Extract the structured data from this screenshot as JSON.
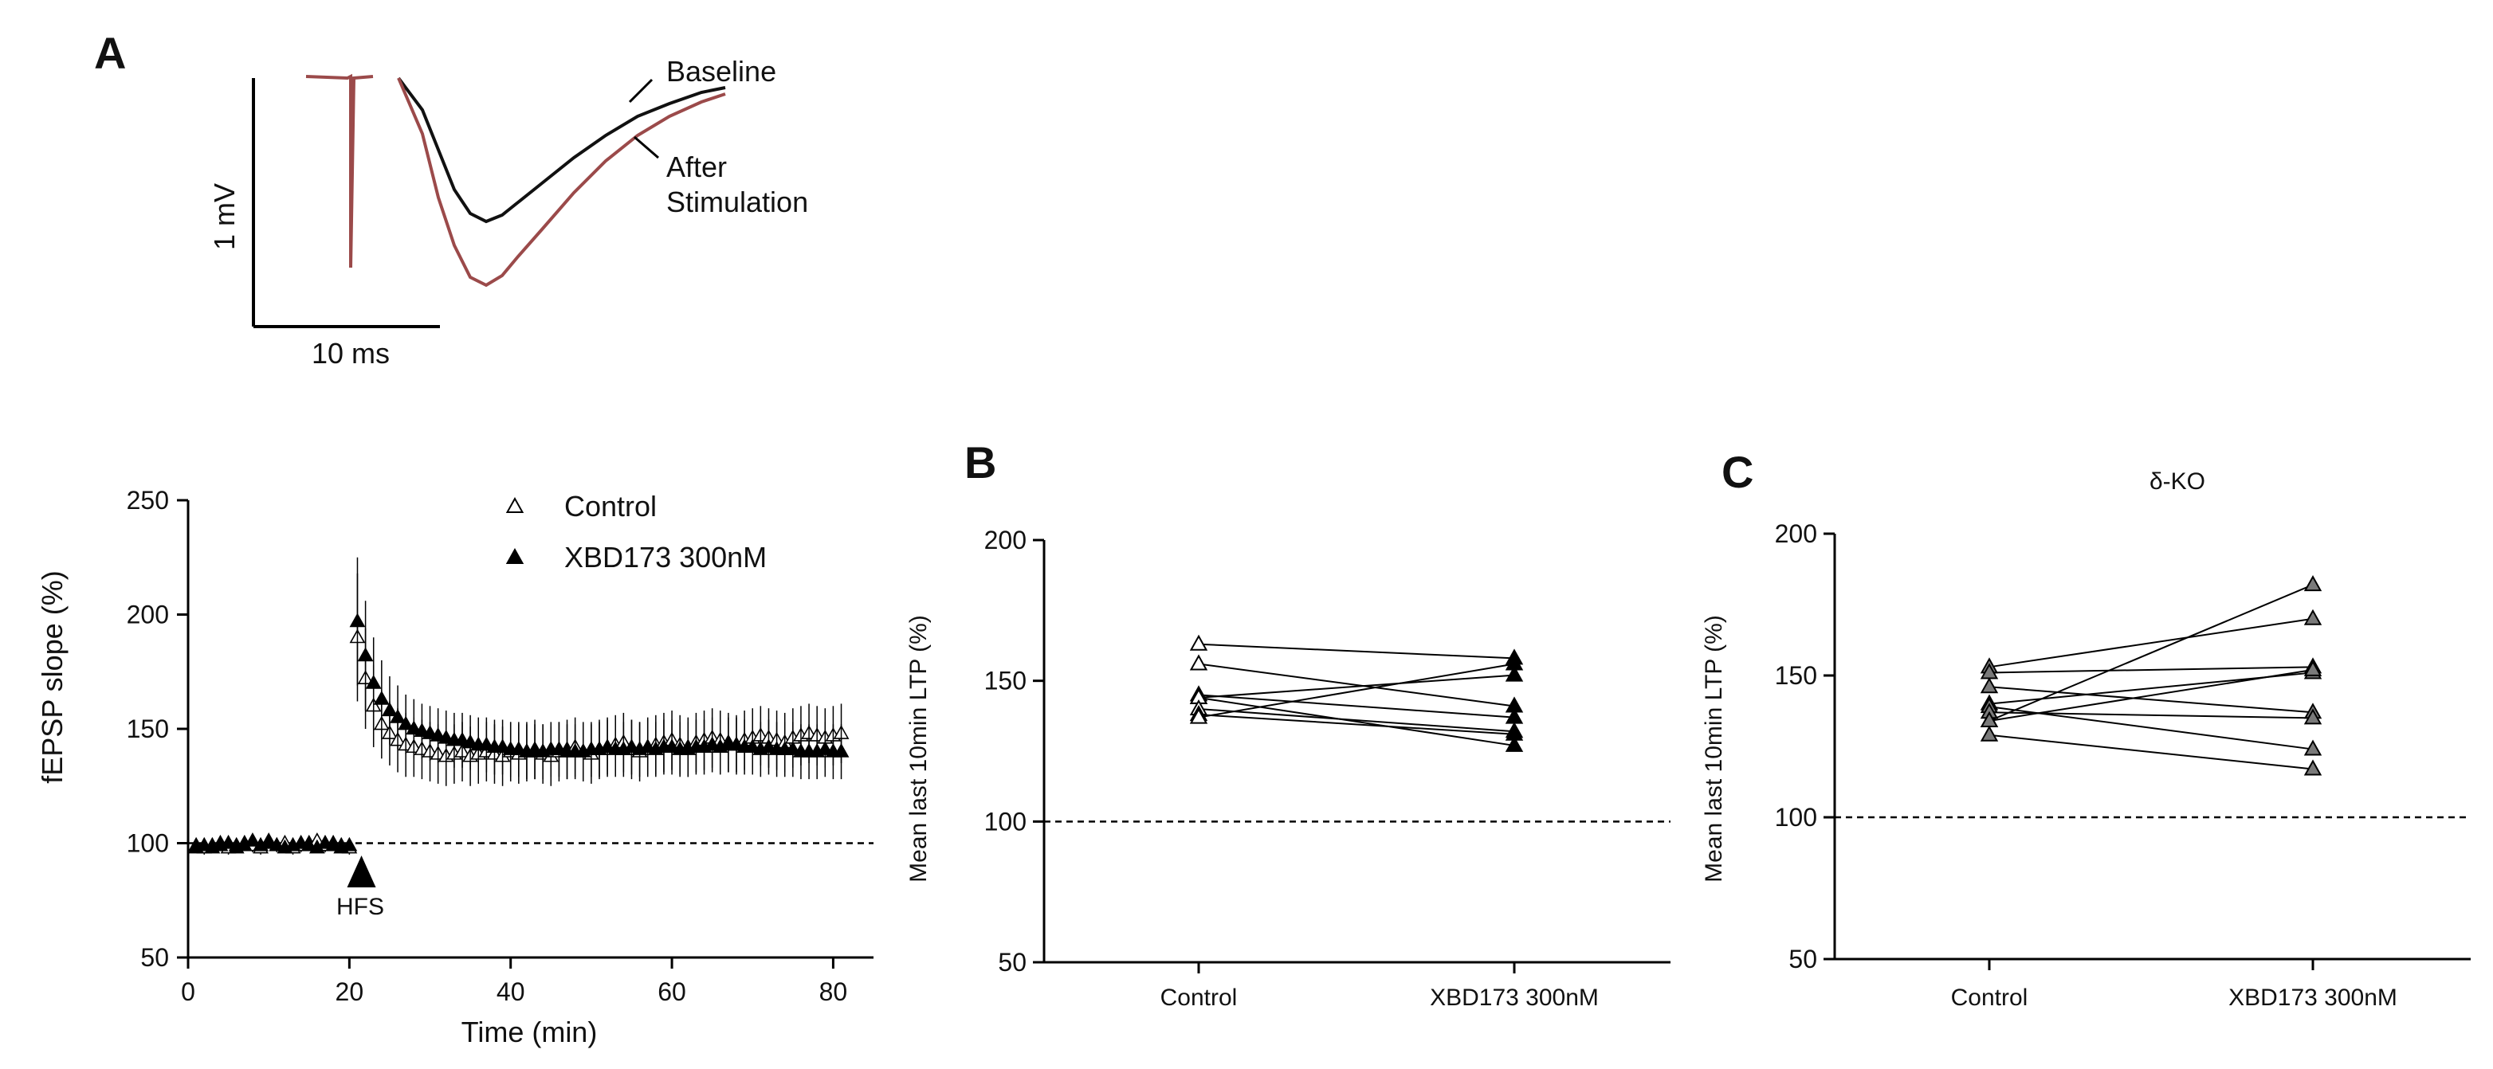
{
  "panel_letters": {
    "a": "A",
    "b": "B",
    "c": "C"
  },
  "colors": {
    "control_fill": "#ffffff",
    "xbd_fill": "#000000",
    "ko_fill": "#7a7a7a",
    "baseline_trace": "#111111",
    "after_trace": "#9b4a4a"
  },
  "chart_data": [
    {
      "id": "A-trace",
      "type": "line",
      "title": "",
      "labels": {
        "baseline": "Baseline",
        "after_line1": "After",
        "after_line2": "Stimulation"
      },
      "scale_bar": {
        "vertical": "1 mV",
        "horizontal": "10 ms"
      },
      "series": [
        {
          "name": "Baseline",
          "x": [
            0,
            3,
            5,
            7,
            9,
            11,
            13,
            15,
            18,
            22,
            26,
            30,
            34,
            38,
            41
          ],
          "y": [
            0,
            -0.2,
            -0.45,
            -0.7,
            -0.85,
            -0.9,
            -0.86,
            -0.78,
            -0.66,
            -0.5,
            -0.36,
            -0.24,
            -0.16,
            -0.09,
            -0.06
          ]
        },
        {
          "name": "After Stimulation",
          "x": [
            0,
            3,
            5,
            7,
            9,
            11,
            13,
            15,
            18,
            22,
            26,
            30,
            34,
            38,
            41
          ],
          "y": [
            0,
            -0.35,
            -0.75,
            -1.05,
            -1.25,
            -1.3,
            -1.24,
            -1.12,
            -0.95,
            -0.72,
            -0.52,
            -0.36,
            -0.24,
            -0.15,
            -0.1
          ]
        }
      ]
    },
    {
      "id": "A-timecourse",
      "type": "scatter",
      "title": "",
      "xlabel": "Time (min)",
      "ylabel": "fEPSP slope (%)",
      "xlim": [
        0,
        85
      ],
      "ylim": [
        50,
        250
      ],
      "xticks": [
        0,
        20,
        40,
        60,
        80
      ],
      "yticks": [
        50,
        100,
        150,
        200,
        250
      ],
      "reference_line": 100,
      "annotation": "HFS",
      "annotation_x": 21.5,
      "legend": [
        "Control",
        "XBD173 300nM"
      ],
      "legend_position": "top-right",
      "series": [
        {
          "name": "Control",
          "marker": "open-triangle",
          "x": [
            1,
            2,
            3,
            4,
            5,
            6,
            7,
            8,
            9,
            10,
            11,
            12,
            13,
            14,
            15,
            16,
            17,
            18,
            19,
            20,
            21,
            22,
            23,
            24,
            25,
            26,
            27,
            28,
            29,
            30,
            31,
            32,
            33,
            34,
            35,
            36,
            37,
            38,
            39,
            40,
            41,
            42,
            43,
            44,
            45,
            46,
            47,
            48,
            49,
            50,
            51,
            52,
            53,
            54,
            55,
            56,
            57,
            58,
            59,
            60,
            61,
            62,
            63,
            64,
            65,
            66,
            67,
            68,
            69,
            70,
            71,
            72,
            73,
            74,
            75,
            76,
            77,
            78,
            79,
            80,
            81
          ],
          "y": [
            99,
            98,
            99,
            100,
            98,
            99,
            100,
            99,
            98,
            101,
            99,
            100,
            98,
            99,
            100,
            101,
            99,
            100,
            99,
            98,
            190,
            172,
            160,
            152,
            148,
            145,
            143,
            142,
            141,
            140,
            139,
            138,
            139,
            140,
            138,
            139,
            140,
            139,
            138,
            140,
            139,
            140,
            141,
            139,
            138,
            140,
            141,
            142,
            140,
            139,
            141,
            142,
            143,
            144,
            141,
            140,
            142,
            143,
            144,
            145,
            143,
            142,
            144,
            145,
            146,
            145,
            144,
            143,
            145,
            146,
            147,
            146,
            145,
            144,
            146,
            147,
            148,
            147,
            146,
            147,
            148
          ],
          "error": [
            3,
            3,
            3,
            3,
            3,
            3,
            3,
            3,
            3,
            3,
            3,
            3,
            3,
            3,
            3,
            3,
            3,
            3,
            3,
            3,
            28,
            22,
            18,
            15,
            14,
            14,
            14,
            13,
            13,
            13,
            13,
            13,
            13,
            13,
            13,
            13,
            13,
            13,
            13,
            13,
            13,
            13,
            13,
            13,
            13,
            13,
            13,
            13,
            13,
            13,
            13,
            13,
            13,
            13,
            13,
            13,
            13,
            13,
            13,
            13,
            13,
            13,
            13,
            13,
            13,
            13,
            13,
            13,
            13,
            13,
            13,
            13,
            13,
            13,
            13,
            13,
            13,
            13,
            13,
            13,
            13
          ]
        },
        {
          "name": "XBD173 300nM",
          "marker": "filled-triangle",
          "x": [
            1,
            2,
            3,
            4,
            5,
            6,
            7,
            8,
            9,
            10,
            11,
            12,
            13,
            14,
            15,
            16,
            17,
            18,
            19,
            20,
            21,
            22,
            23,
            24,
            25,
            26,
            27,
            28,
            29,
            30,
            31,
            32,
            33,
            34,
            35,
            36,
            37,
            38,
            39,
            40,
            41,
            42,
            43,
            44,
            45,
            46,
            47,
            48,
            49,
            50,
            51,
            52,
            53,
            54,
            55,
            56,
            57,
            58,
            59,
            60,
            61,
            62,
            63,
            64,
            65,
            66,
            67,
            68,
            69,
            70,
            71,
            72,
            73,
            74,
            75,
            76,
            77,
            78,
            79,
            80,
            81
          ],
          "y": [
            98,
            99,
            98,
            99,
            100,
            98,
            99,
            101,
            99,
            100,
            99,
            98,
            99,
            100,
            99,
            98,
            100,
            99,
            98,
            99,
            197,
            182,
            170,
            163,
            158,
            155,
            152,
            150,
            149,
            148,
            147,
            146,
            145,
            145,
            144,
            143,
            143,
            142,
            142,
            141,
            141,
            140,
            140,
            140,
            141,
            141,
            140,
            140,
            140,
            141,
            141,
            142,
            141,
            141,
            142,
            141,
            142,
            141,
            142,
            142,
            141,
            141,
            142,
            142,
            143,
            142,
            143,
            143,
            142,
            142,
            141,
            142,
            141,
            141,
            141,
            140,
            140,
            140,
            141,
            140,
            140
          ],
          "error": [
            2,
            2,
            2,
            2,
            2,
            2,
            2,
            2,
            2,
            2,
            2,
            2,
            2,
            2,
            2,
            2,
            2,
            2,
            2,
            2,
            28,
            24,
            20,
            17,
            15,
            14,
            13,
            13,
            12,
            12,
            12,
            12,
            12,
            12,
            12,
            12,
            12,
            12,
            12,
            12,
            12,
            12,
            12,
            12,
            12,
            12,
            12,
            12,
            12,
            12,
            12,
            12,
            12,
            12,
            12,
            12,
            12,
            12,
            12,
            12,
            12,
            12,
            12,
            12,
            12,
            12,
            12,
            12,
            12,
            12,
            12,
            12,
            12,
            12,
            12,
            12,
            12,
            12,
            12,
            12,
            12
          ]
        }
      ]
    },
    {
      "id": "B",
      "type": "scatter",
      "title": "",
      "xlabel": "",
      "ylabel": "Mean last 10min LTP (%)",
      "categories": [
        "Control",
        "XBD173 300nM"
      ],
      "ylim": [
        50,
        200
      ],
      "yticks": [
        50,
        100,
        150,
        200
      ],
      "reference_line": 100,
      "paired": [
        [
          163,
          158
        ],
        [
          156,
          141
        ],
        [
          145,
          137
        ],
        [
          144,
          152
        ],
        [
          144,
          127
        ],
        [
          140,
          132
        ],
        [
          138,
          131
        ],
        [
          137,
          156
        ]
      ]
    },
    {
      "id": "C",
      "type": "scatter",
      "title": "δ-KO",
      "xlabel": "",
      "ylabel": "Mean last 10min LTP (%)",
      "categories": [
        "Control",
        "XBD173 300nM"
      ],
      "ylim": [
        50,
        200
      ],
      "yticks": [
        50,
        100,
        150,
        200
      ],
      "reference_line": 100,
      "paired": [
        [
          153,
          170
        ],
        [
          151,
          153
        ],
        [
          146,
          137
        ],
        [
          140,
          151
        ],
        [
          139,
          124
        ],
        [
          137,
          135
        ],
        [
          134,
          182
        ],
        [
          134,
          152
        ],
        [
          129,
          117
        ]
      ]
    }
  ]
}
